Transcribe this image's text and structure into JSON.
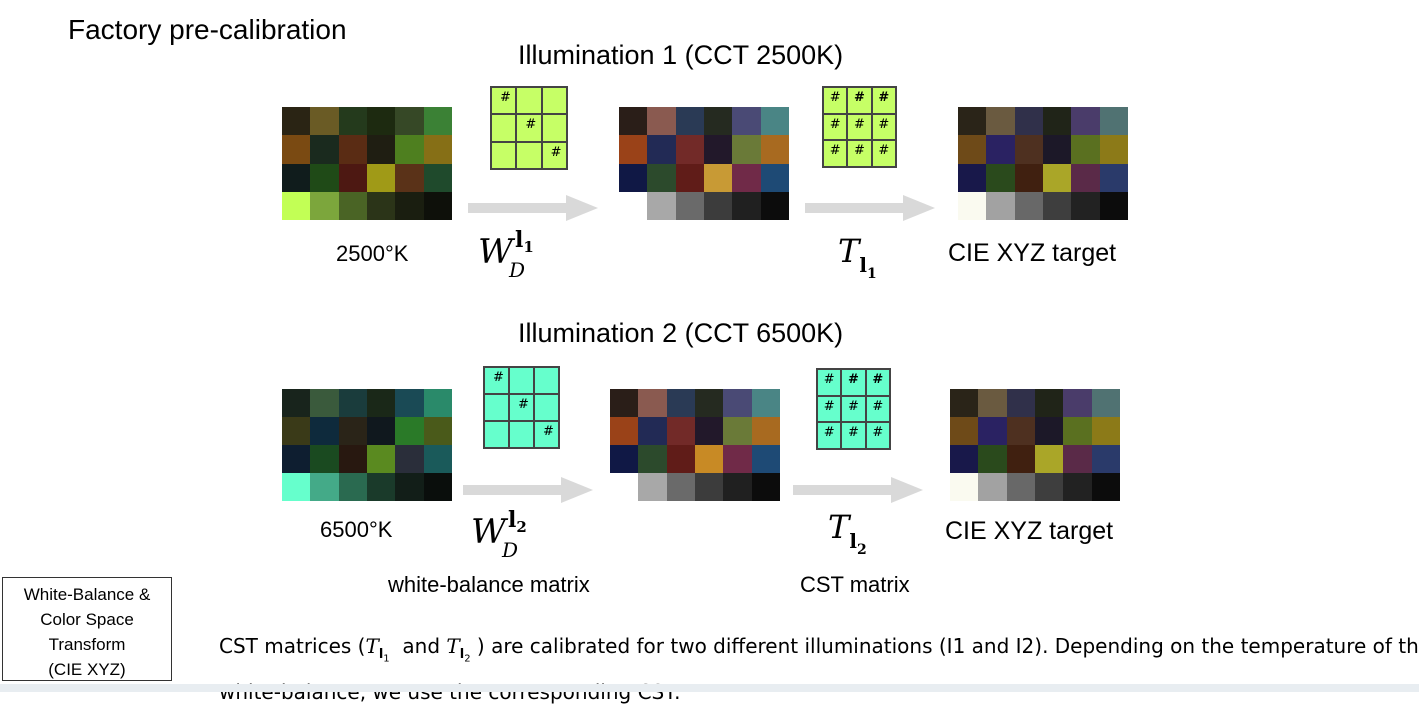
{
  "title": "Factory pre-calibration",
  "illumination1": {
    "heading": "Illumination 1 (CCT 2500K)",
    "temp_label": "2500°K",
    "wb_symbol": {
      "base": "W",
      "sub": "D",
      "sup": "l",
      "supsub": "1"
    },
    "cst_symbol": {
      "base": "T",
      "sub": "l",
      "subsub": "1"
    },
    "target_label": "CIE XYZ target",
    "matrix_color": "#c6ff66",
    "source_chart": [
      "#2a2414",
      "#6a5b25",
      "#243a1c",
      "#1d2a10",
      "#364826",
      "#3b8135",
      "#7a4a12",
      "#1a2a1e",
      "#5a2c14",
      "#1f1e12",
      "#4e7f1f",
      "#866f16",
      "#101c1c",
      "#1f4a17",
      "#4d1812",
      "#a09a17",
      "#5a3218",
      "#1f4a2c",
      "#c2ff55",
      "#7ca63c",
      "#4a6425",
      "#2b3418",
      "#1a1e10",
      "#0e100a"
    ],
    "wb_chart": [
      "#2a1e18",
      "#8a5a50",
      "#2a3a55",
      "#252a20",
      "#4a4a75",
      "#4a8585",
      "#9a4218",
      "#222a55",
      "#722a28",
      "#22182a",
      "#6a7a38",
      "#a86a20",
      "#101845",
      "#2c4a2c",
      "#601c18",
      "#c89a35",
      "#702a48",
      "#1e4a75",
      "#ffffff",
      "#a8a8a8",
      "#6a6a6a",
      "#3c3c3c",
      "#202020",
      "#0c0c0c"
    ],
    "target_chart": [
      "#2a2418",
      "#6a5a40",
      "#30304a",
      "#202418",
      "#4a3c6a",
      "#507272",
      "#6e4a18",
      "#2a2262",
      "#4e3020",
      "#1c1828",
      "#5a7020",
      "#8c7a18",
      "#18184a",
      "#2a4a1c",
      "#402010",
      "#aaa628",
      "#5a2a48",
      "#2a3a6a",
      "#fafaf0",
      "#a2a2a2",
      "#686868",
      "#3e3e3e",
      "#222222",
      "#0c0c0c"
    ]
  },
  "illumination2": {
    "heading": "Illumination 2 (CCT 6500K)",
    "temp_label": "6500°K",
    "wb_symbol": {
      "base": "W",
      "sub": "D",
      "sup": "l",
      "supsub": "2"
    },
    "cst_symbol": {
      "base": "T",
      "sub": "l",
      "subsub": "2"
    },
    "target_label": "CIE XYZ target",
    "matrix_color": "#66ffcc",
    "source_chart": [
      "#18241c",
      "#3a5a3c",
      "#1a3c3c",
      "#1a2818",
      "#1a4a55",
      "#2a8a6a",
      "#3a3a18",
      "#0e2a3c",
      "#2a2418",
      "#10181e",
      "#2a7a28",
      "#4a5a1a",
      "#0e1e30",
      "#1a4a20",
      "#281810",
      "#5a8a20",
      "#2a2e3a",
      "#1a5a5a",
      "#66ffcc",
      "#44aa88",
      "#2a6a50",
      "#1a3a2a",
      "#121e18",
      "#0a0e0c"
    ],
    "wb_chart": [
      "#2a1e18",
      "#8a5a50",
      "#2a3a55",
      "#252a20",
      "#4a4a75",
      "#4a8585",
      "#9a4218",
      "#222a55",
      "#722a28",
      "#22182a",
      "#6a7a38",
      "#a86a20",
      "#101845",
      "#2c4a2c",
      "#601c18",
      "#c88a25",
      "#702a48",
      "#1e4a75",
      "#ffffff",
      "#a8a8a8",
      "#6a6a6a",
      "#3c3c3c",
      "#202020",
      "#0c0c0c"
    ],
    "target_chart": [
      "#2a2418",
      "#6a5a40",
      "#30304a",
      "#202418",
      "#4a3c6a",
      "#507272",
      "#6e4a18",
      "#2a2262",
      "#4e3020",
      "#1c1828",
      "#5a7020",
      "#8c7a18",
      "#18184a",
      "#2a4a1c",
      "#402010",
      "#aaa628",
      "#5a2a48",
      "#2a3a6a",
      "#fafaf0",
      "#a2a2a2",
      "#686868",
      "#3e3e3e",
      "#222222",
      "#0c0c0c"
    ]
  },
  "wb_matrix_cells": [
    "#",
    "",
    "",
    "",
    "#",
    "",
    "",
    "",
    "#"
  ],
  "cst_matrix_cells": [
    "#",
    "#",
    "#",
    "#",
    "#",
    "#",
    "#",
    "#",
    "#"
  ],
  "captions": {
    "wb": "white-balance matrix",
    "cst": "CST matrix"
  },
  "sidebox": [
    "White-Balance &",
    "Color Space",
    "Transform",
    "(CIE XYZ)"
  ],
  "paragraph": {
    "part1": "CST matrices (",
    "sym1": "T",
    "sym1_sub": "l",
    "sym1_subsub": "1",
    "and": "  and ",
    "sym2": "T",
    "sym2_sub": "l",
    "sym2_subsub": "2",
    "part2": " ) are calibrated for two different illuminations (I1 and I2).  Depending on the temperature of the",
    "line2": "white-balance, we use the corresponding CST."
  }
}
